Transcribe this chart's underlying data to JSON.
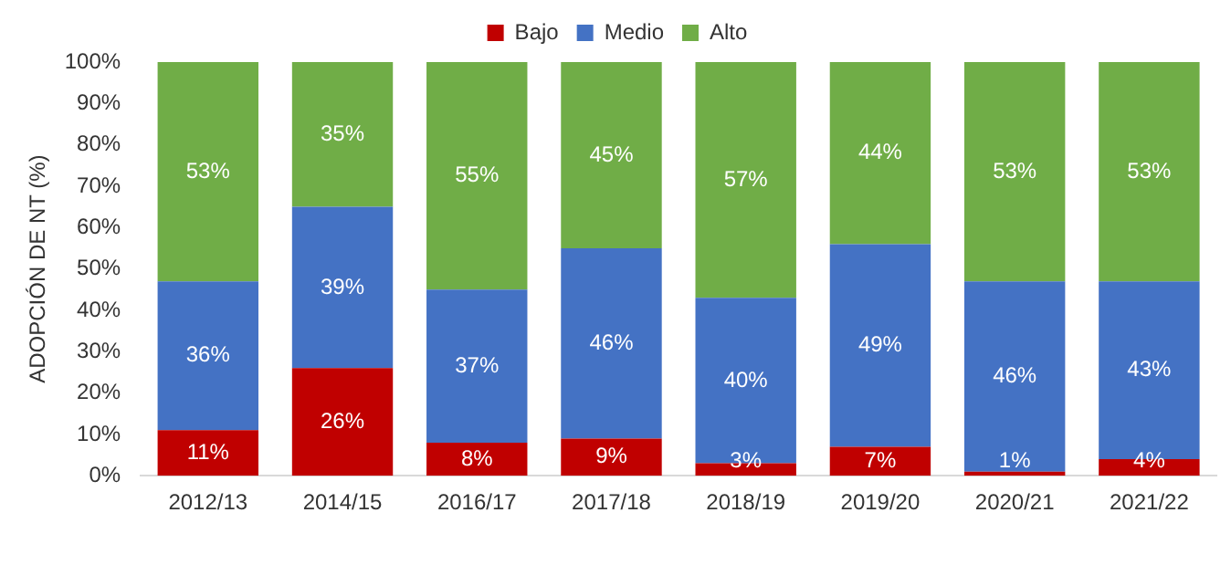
{
  "chart_data": {
    "type": "bar",
    "stacked": true,
    "ylabel": "ADOPCIÓN DE NT (%)",
    "legend": "top",
    "grid": false,
    "categories": [
      "2012/13",
      "2014/15",
      "2016/17",
      "2017/18",
      "2018/19",
      "2019/20",
      "2020/21",
      "2021/22"
    ],
    "ylim": [
      0,
      100
    ],
    "yticks": [
      {
        "value": 0,
        "label": "0%"
      },
      {
        "value": 10,
        "label": "10%"
      },
      {
        "value": 20,
        "label": "20%"
      },
      {
        "value": 30,
        "label": "30%"
      },
      {
        "value": 40,
        "label": "40%"
      },
      {
        "value": 50,
        "label": "50%"
      },
      {
        "value": 60,
        "label": "60%"
      },
      {
        "value": 70,
        "label": "70%"
      },
      {
        "value": 80,
        "label": "80%"
      },
      {
        "value": 90,
        "label": "90%"
      },
      {
        "value": 100,
        "label": "100%"
      }
    ],
    "series": [
      {
        "name": "Bajo",
        "color": "#c00000",
        "values": [
          11,
          26,
          8,
          9,
          3,
          7,
          1,
          4
        ],
        "value_labels": [
          "11%",
          "26%",
          "8%",
          "9%",
          "3%",
          "7%",
          "1%",
          "4%"
        ]
      },
      {
        "name": "Medio",
        "color": "#4472c4",
        "values": [
          36,
          39,
          37,
          46,
          40,
          49,
          46,
          43
        ],
        "value_labels": [
          "36%",
          "39%",
          "37%",
          "46%",
          "40%",
          "49%",
          "46%",
          "43%"
        ]
      },
      {
        "name": "Alto",
        "color": "#70ad47",
        "values": [
          53,
          35,
          55,
          45,
          57,
          44,
          53,
          53
        ],
        "value_labels": [
          "53%",
          "35%",
          "55%",
          "45%",
          "57%",
          "44%",
          "53%",
          "53%"
        ]
      }
    ]
  }
}
